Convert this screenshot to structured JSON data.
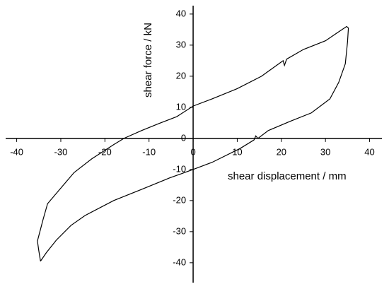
{
  "chart_data": {
    "type": "line",
    "xlabel": "shear displacement / mm",
    "ylabel": "shear force / kN",
    "series": [
      {
        "color": "#000000",
        "x": [
          -34.6,
          -35.0,
          -35.3,
          -34.0,
          -33.0,
          -30.0,
          -27.0,
          -23.0,
          -18.0,
          -15.7,
          -11.7,
          -7.7,
          -3.7,
          0,
          4.3,
          10.0,
          15.5,
          20.4,
          20.7,
          21.2,
          25.0,
          30.0,
          33.0,
          34.8,
          35.2,
          35.0,
          34.5,
          33.0,
          31.0,
          26.8,
          22.0,
          17.0,
          14.7,
          14.2,
          13.8,
          10.7,
          4.3,
          0,
          -5.3,
          -11.7,
          -18.0,
          -24.5,
          -27.7,
          -31.0,
          -33.3,
          -34.6
        ],
        "values": [
          -39.5,
          -36.0,
          -33.0,
          -26.0,
          -21.0,
          -16.0,
          -11.0,
          -6.6,
          -2.0,
          0,
          2.5,
          4.8,
          7.0,
          10.4,
          12.7,
          16.0,
          20.0,
          25.0,
          23.5,
          25.5,
          28.6,
          31.4,
          34.3,
          36.0,
          35.5,
          31.0,
          24.0,
          18.0,
          12.7,
          8.2,
          5.5,
          2.5,
          0,
          0.8,
          -0.5,
          -3.2,
          -7.7,
          -10.0,
          -12.7,
          -16.4,
          -20.0,
          -24.8,
          -28.0,
          -32.7,
          -36.8,
          -39.5
        ]
      }
    ],
    "xlim": [
      -42.5,
      42.8
    ],
    "ylim": [
      -46.4,
      42.7
    ],
    "xticks": [
      -40,
      -30,
      -20,
      -10,
      0,
      10,
      20,
      30,
      40
    ],
    "yticks": [
      -40,
      -30,
      -20,
      -10,
      0,
      10,
      20,
      30,
      40
    ]
  }
}
